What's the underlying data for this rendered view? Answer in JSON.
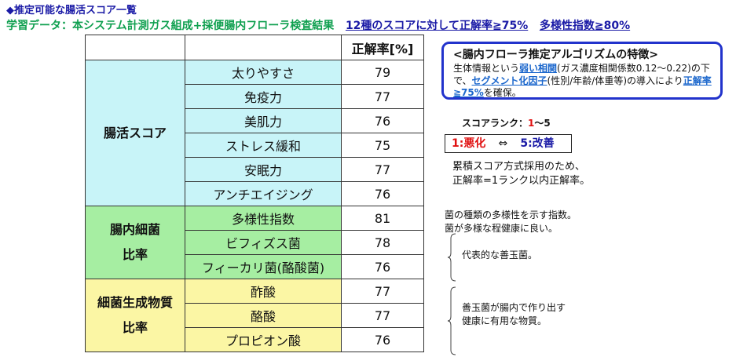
{
  "header": {
    "title": "◆推定可能な腸活スコア一覧",
    "subtitle_prefix": "学習データ：本システム計測ガス組成+採便腸内フローラ検査結果",
    "subtitle_accuracy": "12種のスコアに対して正解率≧75%",
    "subtitle_diversity": "多様性指数≧80%"
  },
  "table": {
    "accuracy_header": "正解率[%]",
    "groups": [
      {
        "label_lines": [
          "腸活スコア"
        ],
        "color": "#c8f4f8",
        "rows": [
          {
            "name": "太りやすさ",
            "value": "79"
          },
          {
            "name": "免疫力",
            "value": "77"
          },
          {
            "name": "美肌力",
            "value": "76"
          },
          {
            "name": "ストレス緩和",
            "value": "75"
          },
          {
            "name": "安眠力",
            "value": "77"
          },
          {
            "name": "アンチエイジング",
            "value": "76"
          }
        ]
      },
      {
        "label_lines": [
          "腸内細菌",
          "比率"
        ],
        "color": "#a6eea2",
        "rows": [
          {
            "name": "多様性指数",
            "value": "81"
          },
          {
            "name": "ビフィズス菌",
            "value": "78"
          },
          {
            "name": "フィーカリ菌(酪酸菌)",
            "value": "76"
          }
        ]
      },
      {
        "label_lines": [
          "細菌生成物質",
          "比率"
        ],
        "color": "#fbf6a4",
        "rows": [
          {
            "name": "酢酸",
            "value": "77"
          },
          {
            "name": "酪酸",
            "value": "77"
          },
          {
            "name": "プロピオン酸",
            "value": "76"
          }
        ]
      }
    ]
  },
  "algorithm": {
    "title": "<腸内フローラ推定アルゴリズムの特徴>",
    "t1": "生体情報という",
    "h1": "弱い相関",
    "t2": "(ガス濃度相関係数0.12～0.22)の下で、",
    "h2": "セグメント化因子",
    "t3": "(性別/年齢/体重等)の導入により",
    "h3": "正解率≧75%",
    "t4": "を確保。"
  },
  "rank": {
    "label": "スコアランク：",
    "range_low": "1",
    "range_sep": "～",
    "range_high": "5",
    "worse": "1:悪化",
    "arrow": "⇔",
    "better": "5:改善",
    "note_line1": "累積スコア方式採用のため、",
    "note_line2": "正解率=1ランク以内正解率。"
  },
  "notes": {
    "diversity_line1": "菌の種類の多様性を示す指数。",
    "diversity_line2": "菌が多様な程健康に良い。",
    "bifido": "代表的な善玉菌。",
    "metabolite_line1": "善玉菌が腸内で作り出す",
    "metabolite_line2": "健康に有用な物質。"
  },
  "colors": {
    "title_blue": "#1a1aa6",
    "subtitle_green": "#10a050",
    "highlight_blue": "#1a66cc",
    "rank_red": "#e01010",
    "box_border": "#2233cc"
  }
}
